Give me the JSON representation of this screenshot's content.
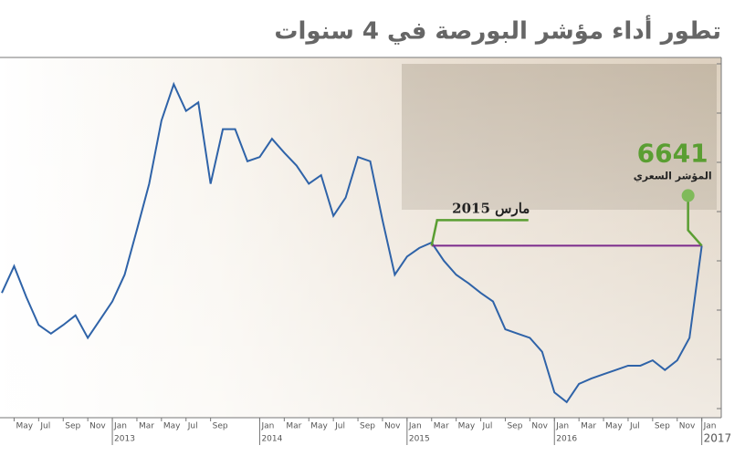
{
  "chart_data": {
    "type": "line",
    "title": "تطور أداء مؤشر البورصة في 4 سنوات",
    "x": [
      "2012-04",
      "2012-05",
      "2012-06",
      "2012-07",
      "2012-08",
      "2012-09",
      "2012-10",
      "2012-11",
      "2012-12",
      "2013-01",
      "2013-02",
      "2013-03",
      "2013-04",
      "2013-05",
      "2013-06",
      "2013-07",
      "2013-08",
      "2013-09",
      "2013-10",
      "2013-11",
      "2013-12",
      "2014-01",
      "2014-02",
      "2014-03",
      "2014-04",
      "2014-05",
      "2014-06",
      "2014-07",
      "2014-08",
      "2014-09",
      "2014-10",
      "2014-11",
      "2014-12",
      "2015-01",
      "2015-02",
      "2015-03",
      "2015-04",
      "2015-05",
      "2015-06",
      "2015-07",
      "2015-08",
      "2015-09",
      "2015-10",
      "2015-11",
      "2015-12",
      "2016-01",
      "2016-02",
      "2016-03",
      "2016-04",
      "2016-05",
      "2016-06",
      "2016-07",
      "2016-08",
      "2016-09",
      "2016-10",
      "2016-11",
      "2016-12",
      "2017-01"
    ],
    "series": [
      {
        "color": "#2f63a8",
        "values": [
          6200,
          6450,
          6160,
          5900,
          5820,
          5900,
          5990,
          5780,
          5950,
          6120,
          6370,
          6790,
          7220,
          7810,
          8150,
          7900,
          7980,
          7220,
          7730,
          7730,
          7430,
          7470,
          7640,
          7510,
          7390,
          7220,
          7300,
          6920,
          7090,
          7470,
          7430,
          6880,
          6370,
          6540,
          6620,
          6670,
          6500,
          6370,
          6290,
          6200,
          6120,
          5860,
          5820,
          5780,
          5650,
          5270,
          5180,
          5350,
          5400,
          5440,
          5480,
          5520,
          5520,
          5570,
          5480,
          5570,
          5780,
          6641
        ]
      }
    ],
    "ylim": [
      5000,
      8400
    ],
    "xticks": [
      {
        "value": "2012-05",
        "label": "May"
      },
      {
        "value": "2012-07",
        "label": "Jul"
      },
      {
        "value": "2012-09",
        "label": "Sep"
      },
      {
        "value": "2012-11",
        "label": "Nov"
      },
      {
        "value": "2013-01",
        "label": "Jan"
      },
      {
        "value": "2013-03",
        "label": "Mar"
      },
      {
        "value": "2013-05",
        "label": "May"
      },
      {
        "value": "2013-07",
        "label": "Jul"
      },
      {
        "value": "2013-09",
        "label": "Sep"
      },
      {
        "value": "2014-01",
        "label": "Jan"
      },
      {
        "value": "2014-03",
        "label": "Mar"
      },
      {
        "value": "2014-05",
        "label": "May"
      },
      {
        "value": "2014-07",
        "label": "Jul"
      },
      {
        "value": "2014-09",
        "label": "Sep"
      },
      {
        "value": "2014-11",
        "label": "Nov"
      },
      {
        "value": "2015-01",
        "label": "Jan"
      },
      {
        "value": "2015-03",
        "label": "Mar"
      },
      {
        "value": "2015-05",
        "label": "May"
      },
      {
        "value": "2015-07",
        "label": "Jul"
      },
      {
        "value": "2015-09",
        "label": "Sep"
      },
      {
        "value": "2015-11",
        "label": "Nov"
      },
      {
        "value": "2016-01",
        "label": "Jan"
      },
      {
        "value": "2016-03",
        "label": "Mar"
      },
      {
        "value": "2016-05",
        "label": "May"
      },
      {
        "value": "2016-07",
        "label": "Jul"
      },
      {
        "value": "2016-09",
        "label": "Sep"
      },
      {
        "value": "2016-11",
        "label": "Nov"
      },
      {
        "value": "2017-01",
        "label": "Jan"
      }
    ],
    "year_labels": [
      {
        "value": "2013-01",
        "label": "2013"
      },
      {
        "value": "2014-01",
        "label": "2014"
      },
      {
        "value": "2015-01",
        "label": "2015"
      },
      {
        "value": "2016-01",
        "label": "2016"
      },
      {
        "value": "2017-01",
        "label": "2017"
      }
    ],
    "annotations": {
      "reference": {
        "x": "2015-03",
        "label": "مارس 2015"
      },
      "end_label": "المؤشر السعري"
    },
    "highlight_color": "#5a9e32",
    "reference_color": "#7b2a8c"
  }
}
